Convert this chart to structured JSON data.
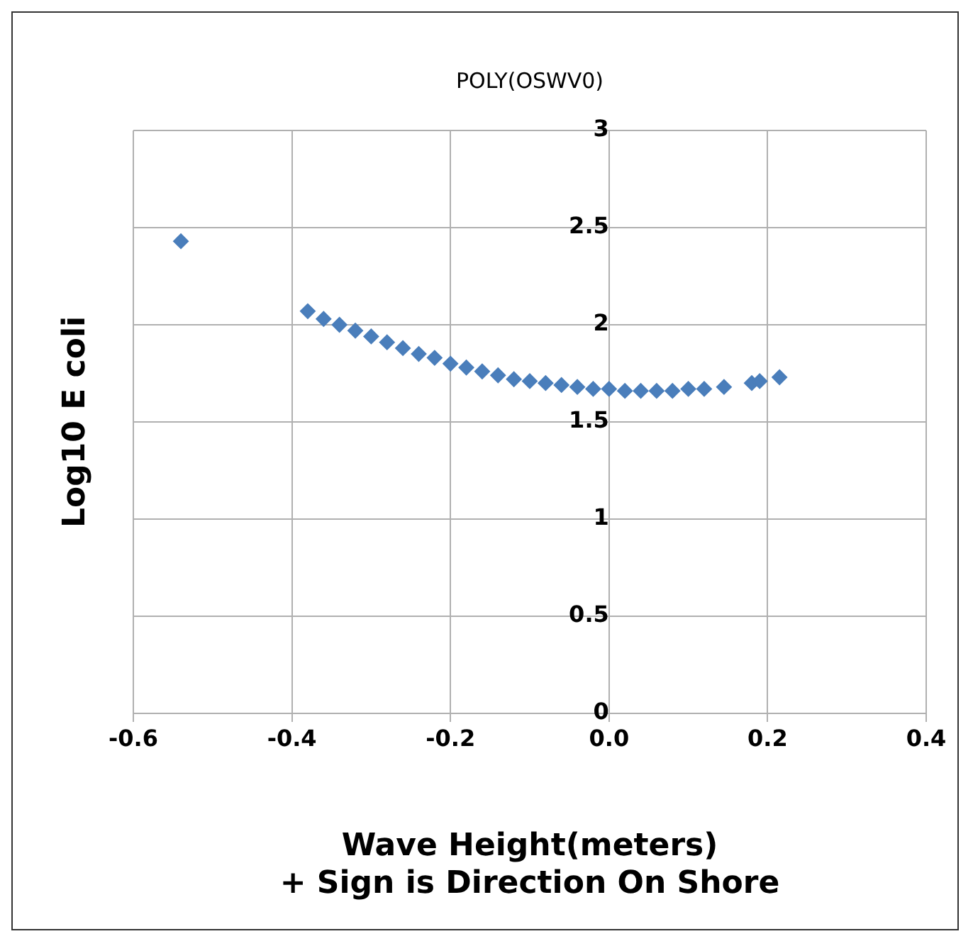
{
  "chart_data": {
    "type": "scatter",
    "title": "POLY(OSWV0)",
    "xlabel": "Wave Height(meters)\n+ Sign is Direction On Shore",
    "ylabel": "Log10 E coli",
    "x": [
      -0.54,
      -0.38,
      -0.36,
      -0.34,
      -0.32,
      -0.3,
      -0.28,
      -0.26,
      -0.24,
      -0.22,
      -0.2,
      -0.18,
      -0.16,
      -0.14,
      -0.12,
      -0.1,
      -0.08,
      -0.06,
      -0.04,
      -0.02,
      0,
      0.02,
      0.04,
      0.06,
      0.08,
      0.1,
      0.12,
      0.145,
      0.18,
      0.19,
      0.215
    ],
    "values": [
      2.43,
      2.07,
      2.03,
      2.0,
      1.97,
      1.94,
      1.91,
      1.88,
      1.85,
      1.83,
      1.8,
      1.78,
      1.76,
      1.74,
      1.72,
      1.71,
      1.7,
      1.69,
      1.68,
      1.67,
      1.67,
      1.66,
      1.66,
      1.66,
      1.66,
      1.67,
      1.67,
      1.68,
      1.7,
      1.71,
      1.73
    ],
    "color": "#4a7ebb",
    "marker": "diamond",
    "grid": true,
    "xlim": [
      -0.6,
      0.4
    ],
    "xticks": [
      -0.6,
      -0.4,
      -0.2,
      {
        "value": 0,
        "label": "0.0"
      },
      0.2,
      0.4
    ],
    "ylim": [
      0,
      3
    ],
    "yticks": [
      0,
      0.5,
      1,
      1.5,
      2,
      2.5,
      3
    ]
  }
}
